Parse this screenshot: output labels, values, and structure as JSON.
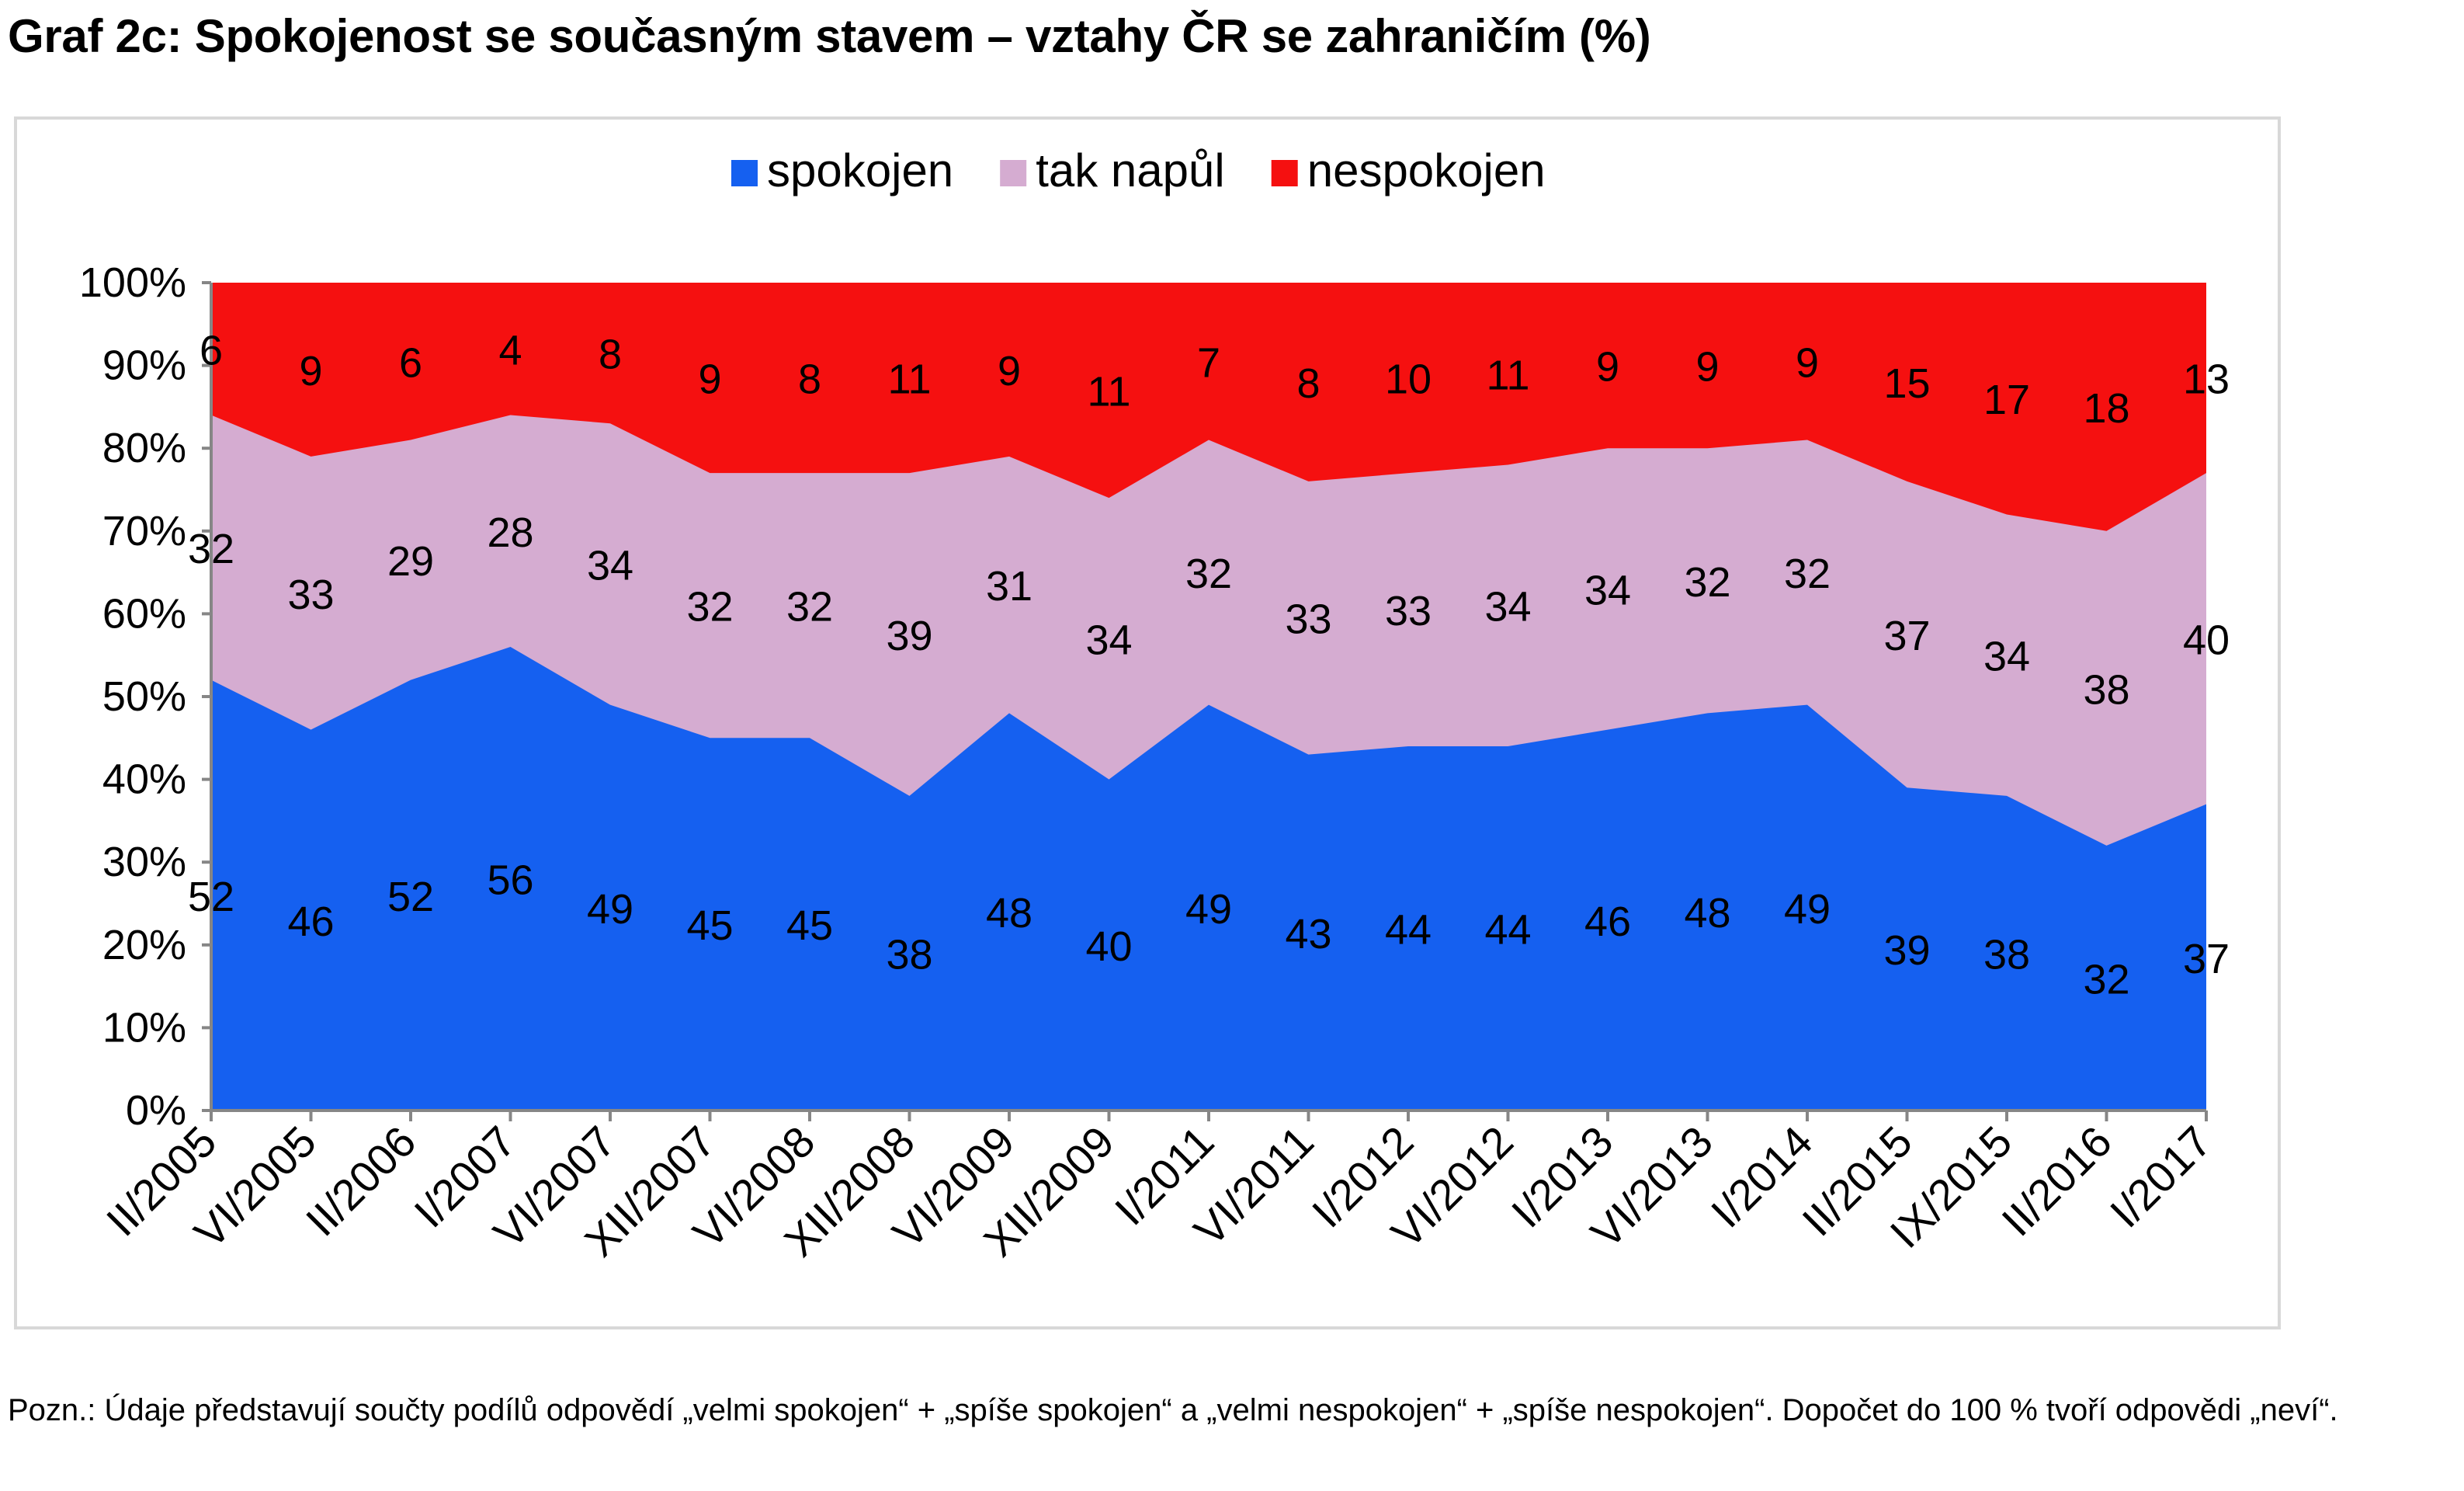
{
  "title": "Graf 2c: Spokojenost se současným stavem – vztahy ČR se zahraničím (%)",
  "note": "Pozn.: Údaje představují součty podílů odpovědí „velmi spokojen“ + „spíše spokojen“ a „velmi nespokojen“ + „spíše nespokojen“. Dopočet do 100 % tvoří odpovědi „neví“.",
  "chart_data": {
    "type": "area",
    "stacked": true,
    "categories": [
      "II/2005",
      "VI/2005",
      "II/2006",
      "I/2007",
      "VI/2007",
      "XII/2007",
      "VI/2008",
      "XII/2008",
      "VI/2009",
      "XII/2009",
      "I/2011",
      "VI/2011",
      "I/2012",
      "VI/2012",
      "I/2013",
      "VI/2013",
      "I/2014",
      "II/2015",
      "IX/2015",
      "II/2016",
      "I/2017"
    ],
    "series": [
      {
        "name": "spokojen",
        "color": "#1560f0",
        "values": [
          52,
          46,
          52,
          56,
          49,
          45,
          45,
          38,
          48,
          40,
          49,
          43,
          44,
          44,
          46,
          48,
          49,
          39,
          38,
          32,
          37
        ]
      },
      {
        "name": "tak napůl",
        "color": "#d5acd1",
        "values": [
          32,
          33,
          29,
          28,
          34,
          32,
          32,
          39,
          31,
          34,
          32,
          33,
          33,
          34,
          34,
          32,
          32,
          37,
          34,
          38,
          40
        ]
      },
      {
        "name": "nespokojen",
        "color": "#f51010",
        "values": [
          6,
          9,
          6,
          4,
          8,
          9,
          8,
          11,
          9,
          11,
          7,
          8,
          10,
          11,
          9,
          9,
          9,
          15,
          17,
          18,
          13
        ]
      }
    ],
    "y_ticks": [
      "0%",
      "10%",
      "20%",
      "30%",
      "40%",
      "50%",
      "60%",
      "70%",
      "80%",
      "90%",
      "100%"
    ],
    "ylim": [
      0,
      100
    ],
    "legend_position": "top-center",
    "grid": false
  }
}
